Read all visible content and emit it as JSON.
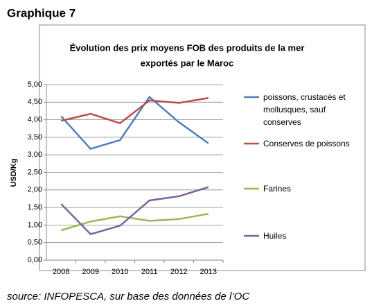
{
  "heading": "Graphique 7",
  "chart_data": {
    "type": "line",
    "title": [
      "Évolution des prix moyens FOB des produits de la mer",
      "exportés par le Maroc"
    ],
    "ylabel": "USD/Kg",
    "categories": [
      "2008",
      "2009",
      "2010",
      "2011",
      "2012",
      "2013"
    ],
    "series": [
      {
        "name": "poissons, crustacés et mollusques, sauf conserves",
        "color": "#4a7ebb",
        "values": [
          4.1,
          3.17,
          3.42,
          4.65,
          3.93,
          3.33
        ]
      },
      {
        "name": "Conserves de poissons",
        "color": "#be4b48",
        "values": [
          3.97,
          4.17,
          3.9,
          4.55,
          4.48,
          4.62
        ]
      },
      {
        "name": "Farines",
        "color": "#98b954",
        "values": [
          0.85,
          1.1,
          1.25,
          1.12,
          1.17,
          1.32
        ]
      },
      {
        "name": "Huiles",
        "color": "#7d60a0",
        "values": [
          1.6,
          0.74,
          0.98,
          1.7,
          1.82,
          2.08
        ]
      }
    ],
    "ylim": [
      0,
      5
    ],
    "yticks": [
      {
        "value": 0,
        "label": "0,00"
      },
      {
        "value": 0.5,
        "label": "0,50"
      },
      {
        "value": 1,
        "label": "1,00"
      },
      {
        "value": 1.5,
        "label": "1,50"
      },
      {
        "value": 2,
        "label": "2,00"
      },
      {
        "value": 2.5,
        "label": "2,50"
      },
      {
        "value": 3,
        "label": "3,00"
      },
      {
        "value": 3.5,
        "label": "3,50"
      },
      {
        "value": 4,
        "label": "4,00"
      },
      {
        "value": 4.5,
        "label": "4,50"
      },
      {
        "value": 5,
        "label": "5,00"
      }
    ],
    "grid": true,
    "legend": "right"
  },
  "source": "source: INFOPESCA, sur base des données de l’OC"
}
